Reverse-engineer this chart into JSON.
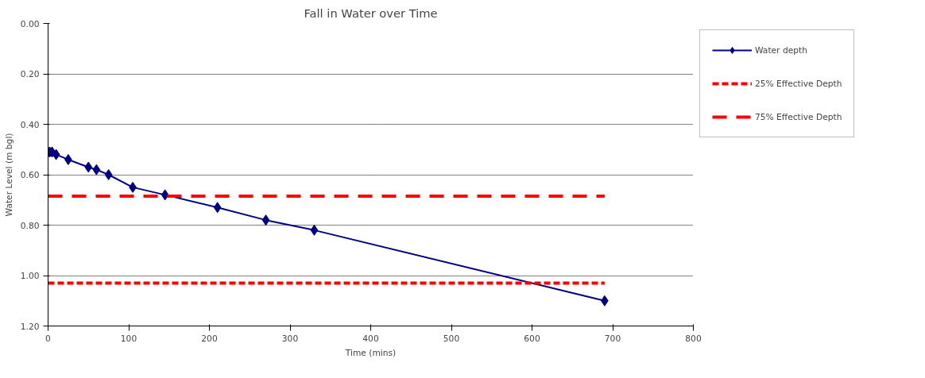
{
  "chart_data": {
    "type": "line",
    "title": "Fall in Water over Time",
    "xlabel": "Time (mins)",
    "ylabel": "Water Level (m bgl)",
    "xlim": [
      0,
      800
    ],
    "xticks": [
      0,
      100,
      200,
      300,
      400,
      500,
      600,
      700,
      800
    ],
    "ylim": [
      1.2,
      0.0
    ],
    "yticks": [
      {
        "value": 0,
        "label": "0.00"
      },
      {
        "value": 0.2,
        "label": "0.20"
      },
      {
        "value": 0.4,
        "label": "0.40"
      },
      {
        "value": 0.6,
        "label": "0.60"
      },
      {
        "value": 0.8,
        "label": "0.80"
      },
      {
        "value": 1.0,
        "label": "1.00"
      },
      {
        "value": 1.2,
        "label": "1.20"
      }
    ],
    "grid": "y",
    "legend": "right",
    "series": [
      {
        "name": "Water depth",
        "color": "#000080",
        "marker": "diamond",
        "line_style": "solid",
        "x": [
          0,
          2,
          5,
          10,
          25,
          50,
          60,
          75,
          105,
          145,
          210,
          270,
          330,
          690
        ],
        "values": [
          0.51,
          0.51,
          0.51,
          0.52,
          0.54,
          0.57,
          0.58,
          0.6,
          0.65,
          0.68,
          0.73,
          0.78,
          0.82,
          1.1
        ]
      },
      {
        "name": "25% Effective Depth",
        "color": "#ff0000",
        "marker": "none",
        "line_style": "dotted",
        "x": [
          0,
          690
        ],
        "values": [
          1.03,
          1.03
        ]
      },
      {
        "name": "75% Effective Depth",
        "color": "#ff0000",
        "marker": "none",
        "line_style": "dashed",
        "x": [
          0,
          690
        ],
        "values": [
          0.685,
          0.685
        ]
      }
    ]
  }
}
